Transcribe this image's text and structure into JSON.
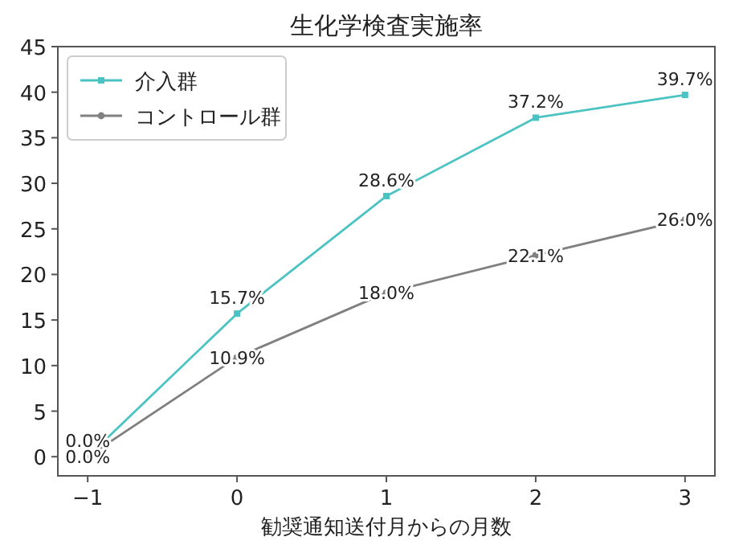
{
  "chart_data": {
    "type": "line",
    "title": "生化学検査実施率",
    "xlabel": "勧奨通知送付月からの月数",
    "x": [
      -1,
      0,
      1,
      2,
      3
    ],
    "series": [
      {
        "name": "介入群",
        "color": "#4cc3c3",
        "marker": "square",
        "values": [
          0.0,
          15.7,
          28.6,
          37.2,
          39.7
        ],
        "value_labels": [
          "0.0%",
          "15.7%",
          "28.6%",
          "37.2%",
          "39.7%"
        ]
      },
      {
        "name": "コントロール群",
        "color": "#808080",
        "marker": "circle",
        "values": [
          0.0,
          10.9,
          18.0,
          22.1,
          26.0
        ],
        "value_labels": [
          "0.0%",
          "10.9%",
          "18.0%",
          "22.1%",
          "26.0%"
        ]
      }
    ],
    "xlim": [
      -1.2,
      3.2
    ],
    "xticks": [
      {
        "value": -1,
        "label": "−1"
      },
      0,
      1,
      2,
      3
    ],
    "ylim": [
      -2.1,
      45
    ],
    "yticks": [
      0,
      5,
      10,
      15,
      20,
      25,
      30,
      35,
      40,
      45
    ],
    "legend": "top left",
    "grid": false
  }
}
